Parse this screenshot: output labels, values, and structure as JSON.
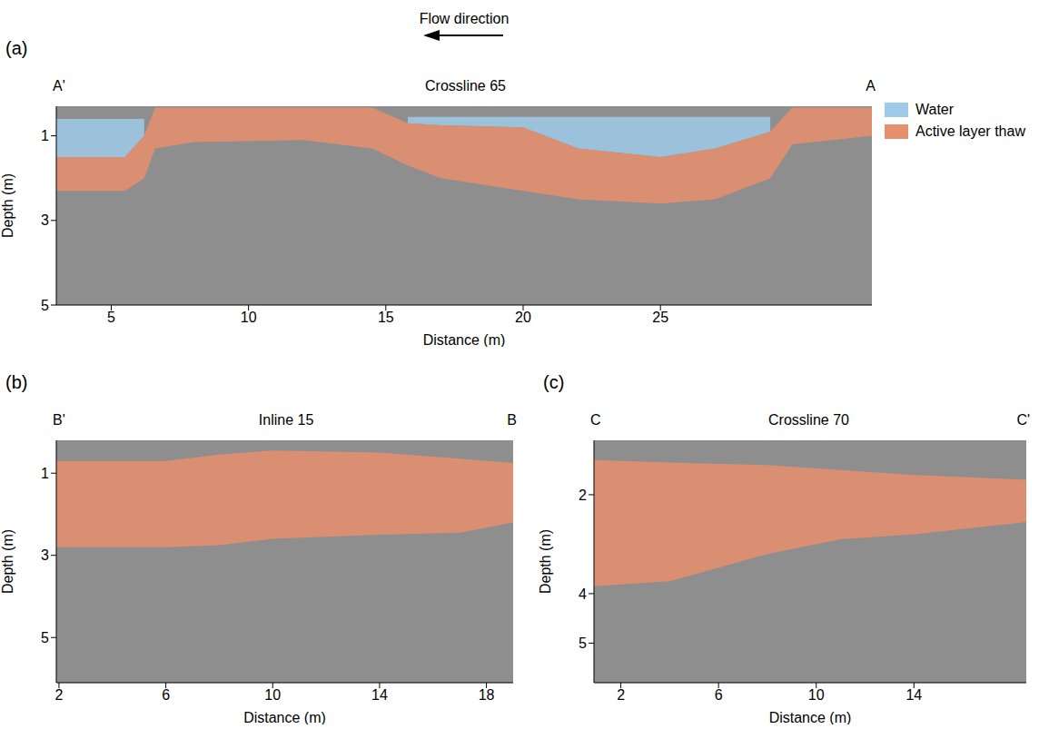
{
  "chart_data": [
    {
      "type": "area",
      "panel": "(a)",
      "title": "Crossline 65",
      "end_labels": [
        "A'",
        "A"
      ],
      "annotation": "Flow direction",
      "xlabel": "Distance (m)",
      "ylabel": "Depth (m)",
      "legend": "right",
      "xlim": [
        3,
        32.7
      ],
      "xticks": [
        5,
        10,
        15,
        20,
        25
      ],
      "ylim": [
        0.3,
        5
      ],
      "yticks": [
        1,
        3,
        5
      ],
      "x": [
        3,
        5.5,
        6.2,
        6.6,
        8,
        12,
        14.5,
        15.8,
        17,
        20,
        22,
        25,
        27,
        29,
        29.8,
        32.7
      ],
      "series": [
        {
          "name": "Water",
          "color": "#9dcbe8",
          "values": [
            [
              0.6,
              1.5
            ],
            [
              0.6,
              1.5
            ],
            [
              0.6,
              1.0
            ],
            null,
            null,
            null,
            null,
            [
              0.55,
              0.7
            ],
            [
              0.55,
              0.75
            ],
            [
              0.55,
              0.8
            ],
            [
              0.55,
              1.3
            ],
            [
              0.55,
              1.5
            ],
            [
              0.55,
              1.3
            ],
            [
              0.55,
              0.9
            ],
            null,
            null
          ]
        },
        {
          "name": "Active layer thaw",
          "color": "#e88f6e",
          "values": [
            [
              1.5,
              2.3
            ],
            [
              1.5,
              2.3
            ],
            [
              1.0,
              2.0
            ],
            [
              0.33,
              1.3
            ],
            [
              0.33,
              1.15
            ],
            [
              0.33,
              1.1
            ],
            [
              0.33,
              1.3
            ],
            [
              0.7,
              1.7
            ],
            [
              0.75,
              2.0
            ],
            [
              0.8,
              2.3
            ],
            [
              1.3,
              2.5
            ],
            [
              1.5,
              2.6
            ],
            [
              1.3,
              2.5
            ],
            [
              0.9,
              2.0
            ],
            [
              0.33,
              1.2
            ],
            [
              0.33,
              1.0
            ]
          ]
        }
      ]
    },
    {
      "type": "area",
      "panel": "(b)",
      "title": "Inline 15",
      "end_labels": [
        "B'",
        "B"
      ],
      "xlabel": "Distance (m)",
      "ylabel": "Depth (m)",
      "xlim": [
        1.9,
        19
      ],
      "xticks": [
        2,
        6,
        10,
        14,
        18
      ],
      "ylim": [
        0.2,
        6.1
      ],
      "yticks": [
        1,
        3,
        5
      ],
      "x": [
        1.9,
        6,
        8,
        10,
        14,
        17,
        19
      ],
      "series": [
        {
          "color": "#e88f6e",
          "values": [
            [
              0.7,
              2.8
            ],
            [
              0.7,
              2.8
            ],
            [
              0.55,
              2.75
            ],
            [
              0.45,
              2.6
            ],
            [
              0.5,
              2.5
            ],
            [
              0.65,
              2.45
            ],
            [
              0.75,
              2.2
            ]
          ]
        }
      ]
    },
    {
      "type": "area",
      "panel": "(c)",
      "title": "Crossline 70",
      "end_labels": [
        "C",
        "C'"
      ],
      "xlabel": "Distance (m)",
      "ylabel": "Depth (m)",
      "xlim": [
        0.9,
        18.6
      ],
      "xticks": [
        2,
        6,
        10,
        14
      ],
      "ylim": [
        0.9,
        5.8
      ],
      "yticks": [
        2,
        4,
        5
      ],
      "x": [
        0.9,
        4,
        8,
        11,
        14,
        18.6
      ],
      "series": [
        {
          "color": "#e88f6e",
          "values": [
            [
              1.3,
              3.85
            ],
            [
              1.35,
              3.75
            ],
            [
              1.4,
              3.2
            ],
            [
              1.5,
              2.9
            ],
            [
              1.6,
              2.8
            ],
            [
              1.7,
              2.55
            ]
          ]
        }
      ]
    }
  ]
}
